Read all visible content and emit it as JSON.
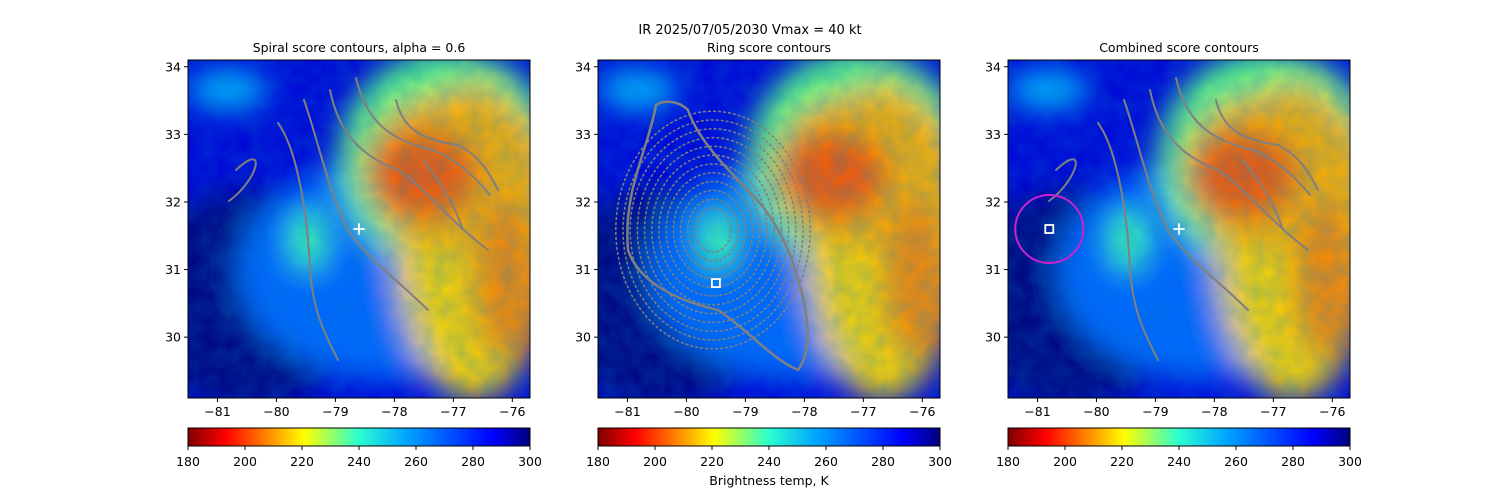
{
  "figure": {
    "suptitle": "IR  2025/07/05/2030    Vmax = 40 kt",
    "colorbar_label": "Brightness temp, K",
    "colormap": "jet (reversed)",
    "colors": {
      "contour": "#808080",
      "marker_center": "#ffffff",
      "circle": "#cc22cc",
      "cold": "#00007f",
      "warm": "#ff3a00"
    }
  },
  "chart_data": [
    {
      "type": "heatmap",
      "title": "Spiral score contours, alpha =  0.6",
      "x_ticks": [
        "−81",
        "−80",
        "−79",
        "−78",
        "−77",
        "−76"
      ],
      "y_ticks": [
        "34",
        "33",
        "32",
        "31",
        "30"
      ],
      "xlim": [
        -81.5,
        -75.7
      ],
      "ylim": [
        29.1,
        34.1
      ],
      "colorbar": {
        "ticks": [
          "180",
          "200",
          "220",
          "240",
          "260",
          "280",
          "300"
        ],
        "range": [
          180,
          300
        ]
      },
      "overlay": "spiral arc contours",
      "markers": [
        {
          "symbol": "+",
          "lon": -78.6,
          "lat": 31.6
        }
      ]
    },
    {
      "type": "heatmap",
      "title": "Ring score contours",
      "x_ticks": [
        "−81",
        "−80",
        "−79",
        "−78",
        "−77",
        "−76"
      ],
      "y_ticks": [
        "34",
        "33",
        "32",
        "31",
        "30"
      ],
      "xlim": [
        -81.5,
        -75.7
      ],
      "ylim": [
        29.1,
        34.1
      ],
      "colorbar": {
        "ticks": [
          "180",
          "200",
          "220",
          "240",
          "260",
          "280",
          "300"
        ],
        "range": [
          180,
          300
        ]
      },
      "overlay": "dense ring score contours",
      "markers": [
        {
          "symbol": "square",
          "lon": -79.5,
          "lat": 30.8
        }
      ]
    },
    {
      "type": "heatmap",
      "title": "Combined score contours",
      "x_ticks": [
        "−81",
        "−80",
        "−79",
        "−78",
        "−77",
        "−76"
      ],
      "y_ticks": [
        "34",
        "33",
        "32",
        "31",
        "30"
      ],
      "xlim": [
        -81.5,
        -75.7
      ],
      "ylim": [
        29.1,
        34.1
      ],
      "colorbar": {
        "ticks": [
          "180",
          "200",
          "220",
          "240",
          "260",
          "280",
          "300"
        ],
        "range": [
          180,
          300
        ]
      },
      "overlay": "combined contours",
      "markers": [
        {
          "symbol": "+",
          "lon": -78.6,
          "lat": 31.6
        },
        {
          "symbol": "square",
          "lon": -80.8,
          "lat": 31.6
        },
        {
          "symbol": "circle",
          "lon": -80.8,
          "lat": 31.6
        }
      ]
    }
  ]
}
